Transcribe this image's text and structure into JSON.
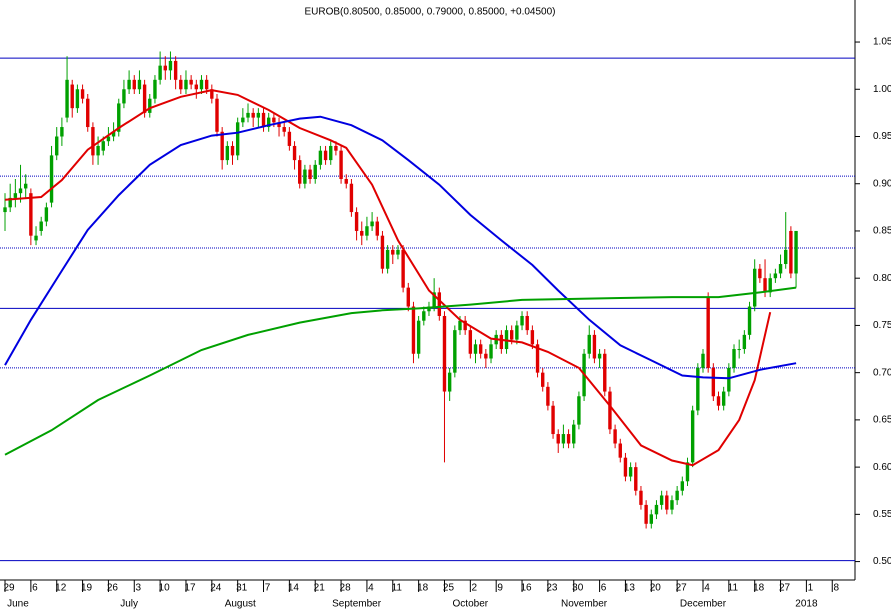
{
  "chart_data": {
    "type": "candlestick",
    "title": "EUROB(0.80500, 0.85000, 0.79000, 0.85000, +0.04500)",
    "up_color": "#00a000",
    "down_color": "#e00000",
    "xlim": [
      -0.97,
      164.4
    ],
    "ylim": [
      0.4805,
      1.0945
    ],
    "yticks": [
      1.05,
      {
        "value": 1.0,
        "label": "1.00"
      },
      0.95,
      {
        "value": 0.9,
        "label": "0.90"
      },
      0.85,
      {
        "value": 0.8,
        "label": "0.80"
      },
      0.75,
      {
        "value": 0.7,
        "label": "0.70"
      },
      0.65,
      {
        "value": 0.6,
        "label": "0.60"
      },
      0.55,
      {
        "value": 0.5,
        "label": "0.50"
      }
    ],
    "xticks": [
      {
        "value": 0,
        "label": "29"
      },
      {
        "value": 5,
        "label": "6"
      },
      {
        "value": 10,
        "label": "12"
      },
      {
        "value": 15,
        "label": "19"
      },
      {
        "value": 20,
        "label": "26"
      },
      {
        "value": 25,
        "label": "3"
      },
      {
        "value": 30,
        "label": "10"
      },
      {
        "value": 35,
        "label": "17"
      },
      {
        "value": 40,
        "label": "24"
      },
      {
        "value": 45,
        "label": "31"
      },
      {
        "value": 50,
        "label": "7"
      },
      {
        "value": 55,
        "label": "14"
      },
      {
        "value": 60,
        "label": "21"
      },
      {
        "value": 65,
        "label": "28"
      },
      {
        "value": 70,
        "label": "4"
      },
      {
        "value": 75,
        "label": "11"
      },
      {
        "value": 80,
        "label": "18"
      },
      {
        "value": 85,
        "label": "25"
      },
      {
        "value": 90,
        "label": "2"
      },
      {
        "value": 95,
        "label": "9"
      },
      {
        "value": 100,
        "label": "16"
      },
      {
        "value": 105,
        "label": "23"
      },
      {
        "value": 110,
        "label": "30"
      },
      {
        "value": 115,
        "label": "6"
      },
      {
        "value": 120,
        "label": "13"
      },
      {
        "value": 125,
        "label": "20"
      },
      {
        "value": 130,
        "label": "27"
      },
      {
        "value": 135,
        "label": "4"
      },
      {
        "value": 140,
        "label": "11"
      },
      {
        "value": 145,
        "label": "18"
      },
      {
        "value": 150,
        "label": "27"
      },
      {
        "value": 155,
        "label": "1"
      },
      {
        "value": 160,
        "label": "8"
      }
    ],
    "month_labels": [
      {
        "value": 2.5,
        "label": "June"
      },
      {
        "value": 24,
        "label": "July"
      },
      {
        "value": 45.5,
        "label": "August"
      },
      {
        "value": 68,
        "label": "September"
      },
      {
        "value": 90,
        "label": "October"
      },
      {
        "value": 112,
        "label": "November"
      },
      {
        "value": 135,
        "label": "December"
      },
      {
        "value": 155,
        "label": "2018"
      }
    ],
    "hlines": [
      {
        "value": 1.033,
        "style": "solid",
        "color": "#0000c0"
      },
      {
        "value": 0.908,
        "style": "dotted",
        "color": "#0000c0"
      },
      {
        "value": 0.832,
        "style": "dotted",
        "color": "#0000c0"
      },
      {
        "value": 0.768,
        "style": "solid",
        "color": "#0000c0"
      },
      {
        "value": 0.705,
        "style": "dotted",
        "color": "#0000c0"
      },
      {
        "value": 0.501,
        "style": "solid",
        "color": "#0000c0"
      }
    ],
    "candles": [
      [
        0.87,
        0.89,
        0.85,
        0.875
      ],
      [
        0.875,
        0.9,
        0.87,
        0.885
      ],
      [
        0.885,
        0.905,
        0.875,
        0.89
      ],
      [
        0.89,
        0.92,
        0.88,
        0.895
      ],
      [
        0.895,
        0.91,
        0.885,
        0.9
      ],
      [
        0.89,
        0.895,
        0.835,
        0.845
      ],
      [
        0.84,
        0.855,
        0.835,
        0.845
      ],
      [
        0.85,
        0.865,
        0.845,
        0.86
      ],
      [
        0.86,
        0.88,
        0.855,
        0.875
      ],
      [
        0.88,
        0.94,
        0.875,
        0.93
      ],
      [
        0.93,
        0.96,
        0.925,
        0.95
      ],
      [
        0.95,
        0.97,
        0.94,
        0.96
      ],
      [
        0.97,
        1.035,
        0.965,
        1.01
      ],
      [
        1.005,
        1.01,
        0.97,
        0.98
      ],
      [
        0.98,
        1.005,
        0.975,
        1.0
      ],
      [
        1.0,
        1.005,
        0.985,
        0.99
      ],
      [
        0.99,
        0.995,
        0.955,
        0.96
      ],
      [
        0.96,
        0.965,
        0.92,
        0.93
      ],
      [
        0.93,
        0.95,
        0.92,
        0.94
      ],
      [
        0.935,
        0.95,
        0.93,
        0.945
      ],
      [
        0.945,
        0.96,
        0.94,
        0.95
      ],
      [
        0.95,
        0.965,
        0.945,
        0.955
      ],
      [
        0.955,
        0.99,
        0.95,
        0.985
      ],
      [
        0.985,
        1.01,
        0.98,
        1.0
      ],
      [
        1.0,
        1.02,
        0.995,
        1.01
      ],
      [
        1.01,
        1.015,
        0.995,
        1.0
      ],
      [
        1.0,
        1.02,
        0.995,
        1.01
      ],
      [
        1.005,
        1.01,
        0.97,
        0.975
      ],
      [
        0.975,
        0.995,
        0.97,
        0.99
      ],
      [
        0.99,
        1.015,
        0.985,
        1.01
      ],
      [
        1.01,
        1.04,
        1.005,
        1.025
      ],
      [
        1.025,
        1.035,
        1.01,
        1.02
      ],
      [
        1.02,
        1.04,
        1.01,
        1.03
      ],
      [
        1.03,
        1.035,
        1.0,
        1.01
      ],
      [
        1.01,
        1.015,
        0.995,
        1.0
      ],
      [
        1.0,
        1.02,
        0.995,
        1.01
      ],
      [
        1.01,
        1.015,
        1.0,
        1.005
      ],
      [
        1.005,
        1.01,
        0.99,
        1.0
      ],
      [
        1.0,
        1.015,
        0.995,
        1.01
      ],
      [
        1.01,
        1.015,
        0.995,
        1.0
      ],
      [
        1.0,
        1.005,
        0.985,
        0.99
      ],
      [
        0.99,
        0.995,
        0.95,
        0.955
      ],
      [
        0.955,
        0.96,
        0.915,
        0.925
      ],
      [
        0.925,
        0.945,
        0.92,
        0.94
      ],
      [
        0.94,
        0.945,
        0.92,
        0.93
      ],
      [
        0.93,
        0.97,
        0.925,
        0.965
      ],
      [
        0.965,
        0.98,
        0.96,
        0.97
      ],
      [
        0.97,
        0.985,
        0.965,
        0.975
      ],
      [
        0.975,
        0.98,
        0.96,
        0.97
      ],
      [
        0.97,
        0.98,
        0.96,
        0.975
      ],
      [
        0.975,
        0.98,
        0.955,
        0.96
      ],
      [
        0.96,
        0.975,
        0.955,
        0.97
      ],
      [
        0.97,
        0.975,
        0.96,
        0.965
      ],
      [
        0.965,
        0.97,
        0.95,
        0.96
      ],
      [
        0.96,
        0.965,
        0.95,
        0.955
      ],
      [
        0.955,
        0.96,
        0.935,
        0.94
      ],
      [
        0.94,
        0.945,
        0.915,
        0.925
      ],
      [
        0.925,
        0.93,
        0.895,
        0.9
      ],
      [
        0.9,
        0.92,
        0.895,
        0.915
      ],
      [
        0.915,
        0.92,
        0.9,
        0.905
      ],
      [
        0.905,
        0.925,
        0.9,
        0.92
      ],
      [
        0.92,
        0.94,
        0.915,
        0.935
      ],
      [
        0.935,
        0.94,
        0.92,
        0.925
      ],
      [
        0.925,
        0.945,
        0.92,
        0.94
      ],
      [
        0.94,
        0.945,
        0.93,
        0.935
      ],
      [
        0.935,
        0.94,
        0.9,
        0.905
      ],
      [
        0.905,
        0.91,
        0.895,
        0.9
      ],
      [
        0.9,
        0.905,
        0.865,
        0.87
      ],
      [
        0.87,
        0.875,
        0.84,
        0.85
      ],
      [
        0.85,
        0.86,
        0.835,
        0.845
      ],
      [
        0.845,
        0.865,
        0.84,
        0.855
      ],
      [
        0.855,
        0.87,
        0.85,
        0.86
      ],
      [
        0.86,
        0.865,
        0.84,
        0.845
      ],
      [
        0.845,
        0.85,
        0.805,
        0.81
      ],
      [
        0.81,
        0.835,
        0.805,
        0.83
      ],
      [
        0.83,
        0.835,
        0.815,
        0.825
      ],
      [
        0.825,
        0.835,
        0.82,
        0.83
      ],
      [
        0.83,
        0.835,
        0.785,
        0.79
      ],
      [
        0.79,
        0.795,
        0.765,
        0.77
      ],
      [
        0.77,
        0.775,
        0.71,
        0.72
      ],
      [
        0.72,
        0.76,
        0.715,
        0.755
      ],
      [
        0.755,
        0.77,
        0.75,
        0.765
      ],
      [
        0.765,
        0.775,
        0.76,
        0.77
      ],
      [
        0.77,
        0.8,
        0.765,
        0.785
      ],
      [
        0.785,
        0.79,
        0.755,
        0.76
      ],
      [
        0.76,
        0.765,
        0.605,
        0.68
      ],
      [
        0.68,
        0.705,
        0.67,
        0.7
      ],
      [
        0.7,
        0.75,
        0.695,
        0.745
      ],
      [
        0.745,
        0.76,
        0.74,
        0.755
      ],
      [
        0.755,
        0.76,
        0.74,
        0.745
      ],
      [
        0.745,
        0.75,
        0.715,
        0.72
      ],
      [
        0.72,
        0.735,
        0.71,
        0.73
      ],
      [
        0.73,
        0.735,
        0.715,
        0.72
      ],
      [
        0.72,
        0.725,
        0.705,
        0.715
      ],
      [
        0.715,
        0.735,
        0.71,
        0.73
      ],
      [
        0.73,
        0.745,
        0.725,
        0.74
      ],
      [
        0.74,
        0.745,
        0.72,
        0.725
      ],
      [
        0.725,
        0.75,
        0.72,
        0.745
      ],
      [
        0.745,
        0.75,
        0.73,
        0.735
      ],
      [
        0.735,
        0.755,
        0.73,
        0.75
      ],
      [
        0.75,
        0.765,
        0.745,
        0.76
      ],
      [
        0.76,
        0.765,
        0.74,
        0.745
      ],
      [
        0.745,
        0.75,
        0.725,
        0.73
      ],
      [
        0.73,
        0.735,
        0.695,
        0.7
      ],
      [
        0.7,
        0.705,
        0.68,
        0.685
      ],
      [
        0.685,
        0.69,
        0.66,
        0.665
      ],
      [
        0.665,
        0.67,
        0.63,
        0.635
      ],
      [
        0.635,
        0.64,
        0.615,
        0.625
      ],
      [
        0.625,
        0.645,
        0.62,
        0.635
      ],
      [
        0.635,
        0.64,
        0.62,
        0.625
      ],
      [
        0.625,
        0.65,
        0.62,
        0.645
      ],
      [
        0.645,
        0.68,
        0.64,
        0.675
      ],
      [
        0.675,
        0.725,
        0.67,
        0.72
      ],
      [
        0.72,
        0.75,
        0.715,
        0.74
      ],
      [
        0.74,
        0.745,
        0.71,
        0.715
      ],
      [
        0.715,
        0.725,
        0.705,
        0.72
      ],
      [
        0.72,
        0.725,
        0.675,
        0.68
      ],
      [
        0.68,
        0.685,
        0.635,
        0.64
      ],
      [
        0.64,
        0.645,
        0.62,
        0.625
      ],
      [
        0.625,
        0.63,
        0.605,
        0.61
      ],
      [
        0.61,
        0.615,
        0.585,
        0.59
      ],
      [
        0.59,
        0.605,
        0.585,
        0.6
      ],
      [
        0.6,
        0.605,
        0.57,
        0.575
      ],
      [
        0.575,
        0.58,
        0.555,
        0.56
      ],
      [
        0.56,
        0.565,
        0.535,
        0.54
      ],
      [
        0.54,
        0.555,
        0.535,
        0.55
      ],
      [
        0.55,
        0.565,
        0.545,
        0.56
      ],
      [
        0.56,
        0.575,
        0.555,
        0.57
      ],
      [
        0.57,
        0.575,
        0.55,
        0.555
      ],
      [
        0.555,
        0.57,
        0.55,
        0.565
      ],
      [
        0.565,
        0.58,
        0.56,
        0.575
      ],
      [
        0.575,
        0.59,
        0.57,
        0.585
      ],
      [
        0.585,
        0.61,
        0.58,
        0.605
      ],
      [
        0.605,
        0.665,
        0.6,
        0.66
      ],
      [
        0.66,
        0.71,
        0.655,
        0.705
      ],
      [
        0.705,
        0.725,
        0.7,
        0.72
      ],
      [
        0.78,
        0.785,
        0.7,
        0.705
      ],
      [
        0.705,
        0.71,
        0.67,
        0.675
      ],
      [
        0.675,
        0.68,
        0.66,
        0.665
      ],
      [
        0.665,
        0.685,
        0.66,
        0.68
      ],
      [
        0.68,
        0.71,
        0.675,
        0.705
      ],
      [
        0.705,
        0.73,
        0.7,
        0.725
      ],
      [
        0.725,
        0.735,
        0.715,
        0.725
      ],
      [
        0.725,
        0.745,
        0.72,
        0.74
      ],
      [
        0.74,
        0.775,
        0.735,
        0.77
      ],
      [
        0.77,
        0.82,
        0.765,
        0.81
      ],
      [
        0.81,
        0.815,
        0.795,
        0.8
      ],
      [
        0.8,
        0.82,
        0.78,
        0.785
      ],
      [
        0.785,
        0.805,
        0.78,
        0.8
      ],
      [
        0.8,
        0.81,
        0.795,
        0.805
      ],
      [
        0.805,
        0.825,
        0.8,
        0.815
      ],
      [
        0.815,
        0.87,
        0.81,
        0.83
      ],
      [
        0.85,
        0.855,
        0.8,
        0.805
      ],
      [
        0.805,
        0.85,
        0.79,
        0.85
      ]
    ],
    "ma": [
      {
        "color": "#e00000",
        "x": [
          0,
          7,
          11,
          16,
          22,
          28,
          34,
          40,
          45,
          51,
          57,
          63,
          66,
          71,
          76,
          82,
          88,
          94,
          100,
          105,
          111,
          117,
          123,
          129,
          133,
          138,
          142,
          145,
          148
        ],
        "values": [
          0.883,
          0.886,
          0.904,
          0.936,
          0.959,
          0.98,
          0.992,
          0.999,
          0.994,
          0.978,
          0.959,
          0.946,
          0.938,
          0.899,
          0.84,
          0.787,
          0.756,
          0.736,
          0.732,
          0.722,
          0.705,
          0.665,
          0.623,
          0.607,
          0.602,
          0.618,
          0.65,
          0.692,
          0.764
        ]
      },
      {
        "color": "#0000e0",
        "x": [
          0,
          5,
          11,
          16,
          22,
          28,
          34,
          40,
          45,
          51,
          57,
          61,
          67,
          73,
          78,
          84,
          90,
          96,
          102,
          107,
          113,
          119,
          125,
          131,
          135,
          140,
          146,
          153
        ],
        "values": [
          0.708,
          0.756,
          0.808,
          0.851,
          0.888,
          0.92,
          0.941,
          0.951,
          0.954,
          0.962,
          0.969,
          0.971,
          0.962,
          0.946,
          0.925,
          0.899,
          0.867,
          0.84,
          0.814,
          0.787,
          0.756,
          0.729,
          0.713,
          0.697,
          0.695,
          0.694,
          0.703,
          0.71
        ]
      },
      {
        "color": "#00a000",
        "x": [
          0,
          9,
          18,
          28,
          38,
          47,
          57,
          67,
          73,
          80,
          90,
          100,
          109,
          119,
          129,
          138,
          146,
          153
        ],
        "values": [
          0.613,
          0.639,
          0.671,
          0.697,
          0.724,
          0.74,
          0.753,
          0.763,
          0.766,
          0.768,
          0.772,
          0.777,
          0.778,
          0.779,
          0.78,
          0.78,
          0.785,
          0.79
        ]
      }
    ]
  }
}
